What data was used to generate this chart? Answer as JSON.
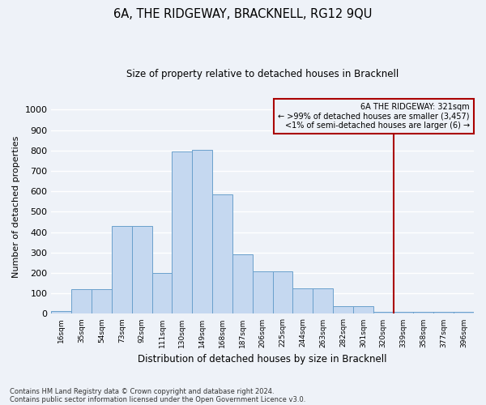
{
  "title": "6A, THE RIDGEWAY, BRACKNELL, RG12 9QU",
  "subtitle": "Size of property relative to detached houses in Bracknell",
  "xlabel": "Distribution of detached houses by size in Bracknell",
  "ylabel": "Number of detached properties",
  "bar_values": [
    15,
    120,
    120,
    430,
    430,
    200,
    795,
    805,
    585,
    290,
    210,
    210,
    125,
    125,
    38,
    38,
    10,
    10,
    8,
    8,
    8
  ],
  "categories": [
    "16sqm",
    "35sqm",
    "54sqm",
    "73sqm",
    "92sqm",
    "111sqm",
    "130sqm",
    "149sqm",
    "168sqm",
    "187sqm",
    "206sqm",
    "225sqm",
    "244sqm",
    "263sqm",
    "282sqm",
    "301sqm",
    "320sqm",
    "339sqm",
    "358sqm",
    "377sqm",
    "396sqm"
  ],
  "bar_color": "#c5d8f0",
  "bar_edge_color": "#6aa0cc",
  "vline_x_index": 16.5,
  "vline_color": "#aa0000",
  "annotation_title": "6A THE RIDGEWAY: 321sqm",
  "annotation_line1": "← >99% of detached houses are smaller (3,457)",
  "annotation_line2": "<1% of semi-detached houses are larger (6) →",
  "annotation_box_color": "#aa0000",
  "ylim": [
    0,
    1050
  ],
  "yticks": [
    0,
    100,
    200,
    300,
    400,
    500,
    600,
    700,
    800,
    900,
    1000
  ],
  "footnote1": "Contains HM Land Registry data © Crown copyright and database right 2024.",
  "footnote2": "Contains public sector information licensed under the Open Government Licence v3.0.",
  "bg_color": "#eef2f8",
  "grid_color": "#ffffff",
  "figsize": [
    6.0,
    5.0
  ],
  "dpi": 100
}
